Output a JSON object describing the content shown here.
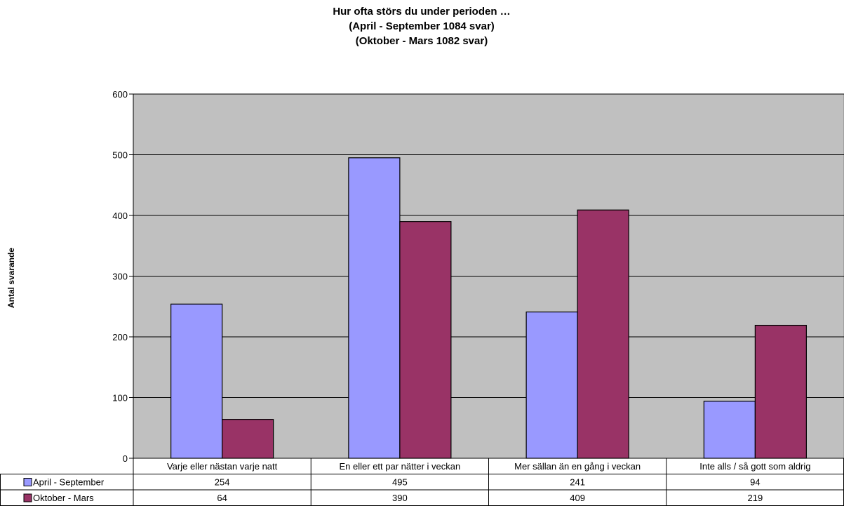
{
  "chart_data": {
    "type": "bar",
    "title_lines": [
      "Hur ofta störs du under perioden …",
      "(April - September 1084 svar)",
      "(Oktober - Mars 1082 svar)"
    ],
    "ylabel": "Antal svarande",
    "xlabel": "",
    "ylim": [
      0,
      600
    ],
    "yticks": [
      0,
      100,
      200,
      300,
      400,
      500,
      600
    ],
    "categories": [
      "Varje eller nästan varje natt",
      "En eller ett par nätter i veckan",
      "Mer sällan än en gång i veckan",
      "Inte alls / så gott som aldrig"
    ],
    "series": [
      {
        "name": "April - September",
        "color": "#9999ff",
        "values": [
          254,
          495,
          241,
          94
        ]
      },
      {
        "name": "Oktober - Mars",
        "color": "#993366",
        "values": [
          64,
          390,
          409,
          219
        ]
      }
    ],
    "grid": true,
    "plot_background": "#c0c0c0",
    "legend": "data-table",
    "data_table": true
  }
}
